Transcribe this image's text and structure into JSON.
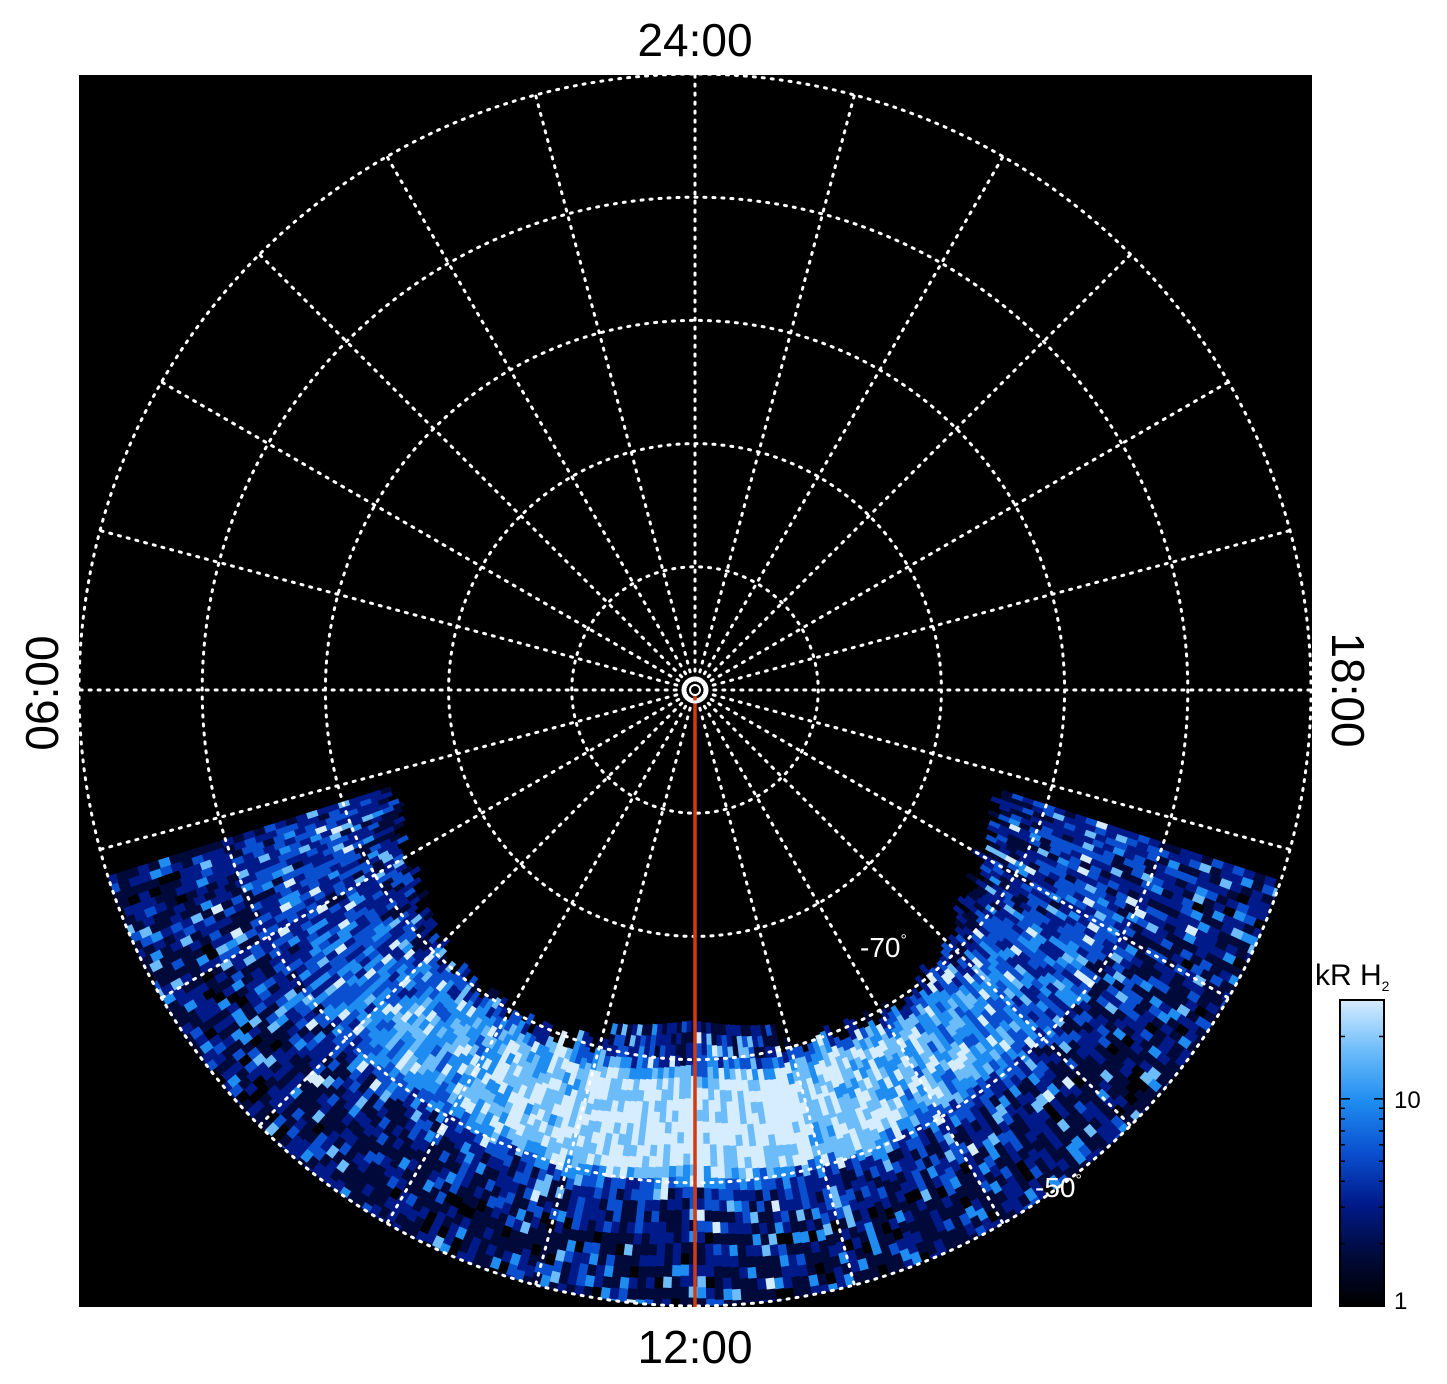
{
  "projection": {
    "hemisphere": "south",
    "local_time_labels": {
      "top": "24:00",
      "bottom": "12:00",
      "left": "06:00",
      "right": "18:00"
    },
    "latitude_circles_deg": [
      -80,
      -70,
      -60,
      -50,
      -40
    ],
    "latitude_labels": [
      {
        "text": "-70",
        "unit": "°",
        "lat": -70
      },
      {
        "text": "-50",
        "unit": "°",
        "lat": -50
      }
    ],
    "meridian_step_hours": 1,
    "grid_style": "dotted-white",
    "background": "#000000",
    "marker_line_color": "#d43a10",
    "marker_line_local_time": "12:00"
  },
  "colorbar": {
    "title_main": "kR H",
    "title_sub": "2",
    "scale": "log",
    "range": [
      1,
      30
    ],
    "tick_labels": [
      "10",
      "1"
    ],
    "tick_values": [
      10,
      1
    ],
    "colors": [
      "#000000",
      "#000a3a",
      "#001a8a",
      "#0a4fd0",
      "#1e8cf0",
      "#6cbcfa",
      "#d6ecff"
    ]
  },
  "emission": {
    "lat_extent_deg": [
      -62,
      -40
    ],
    "lt_extent_hours": [
      7.2,
      16.8
    ],
    "main_oval_lat_deg": [
      -58,
      -55,
      -52
    ],
    "brightest_kR": 30
  }
}
